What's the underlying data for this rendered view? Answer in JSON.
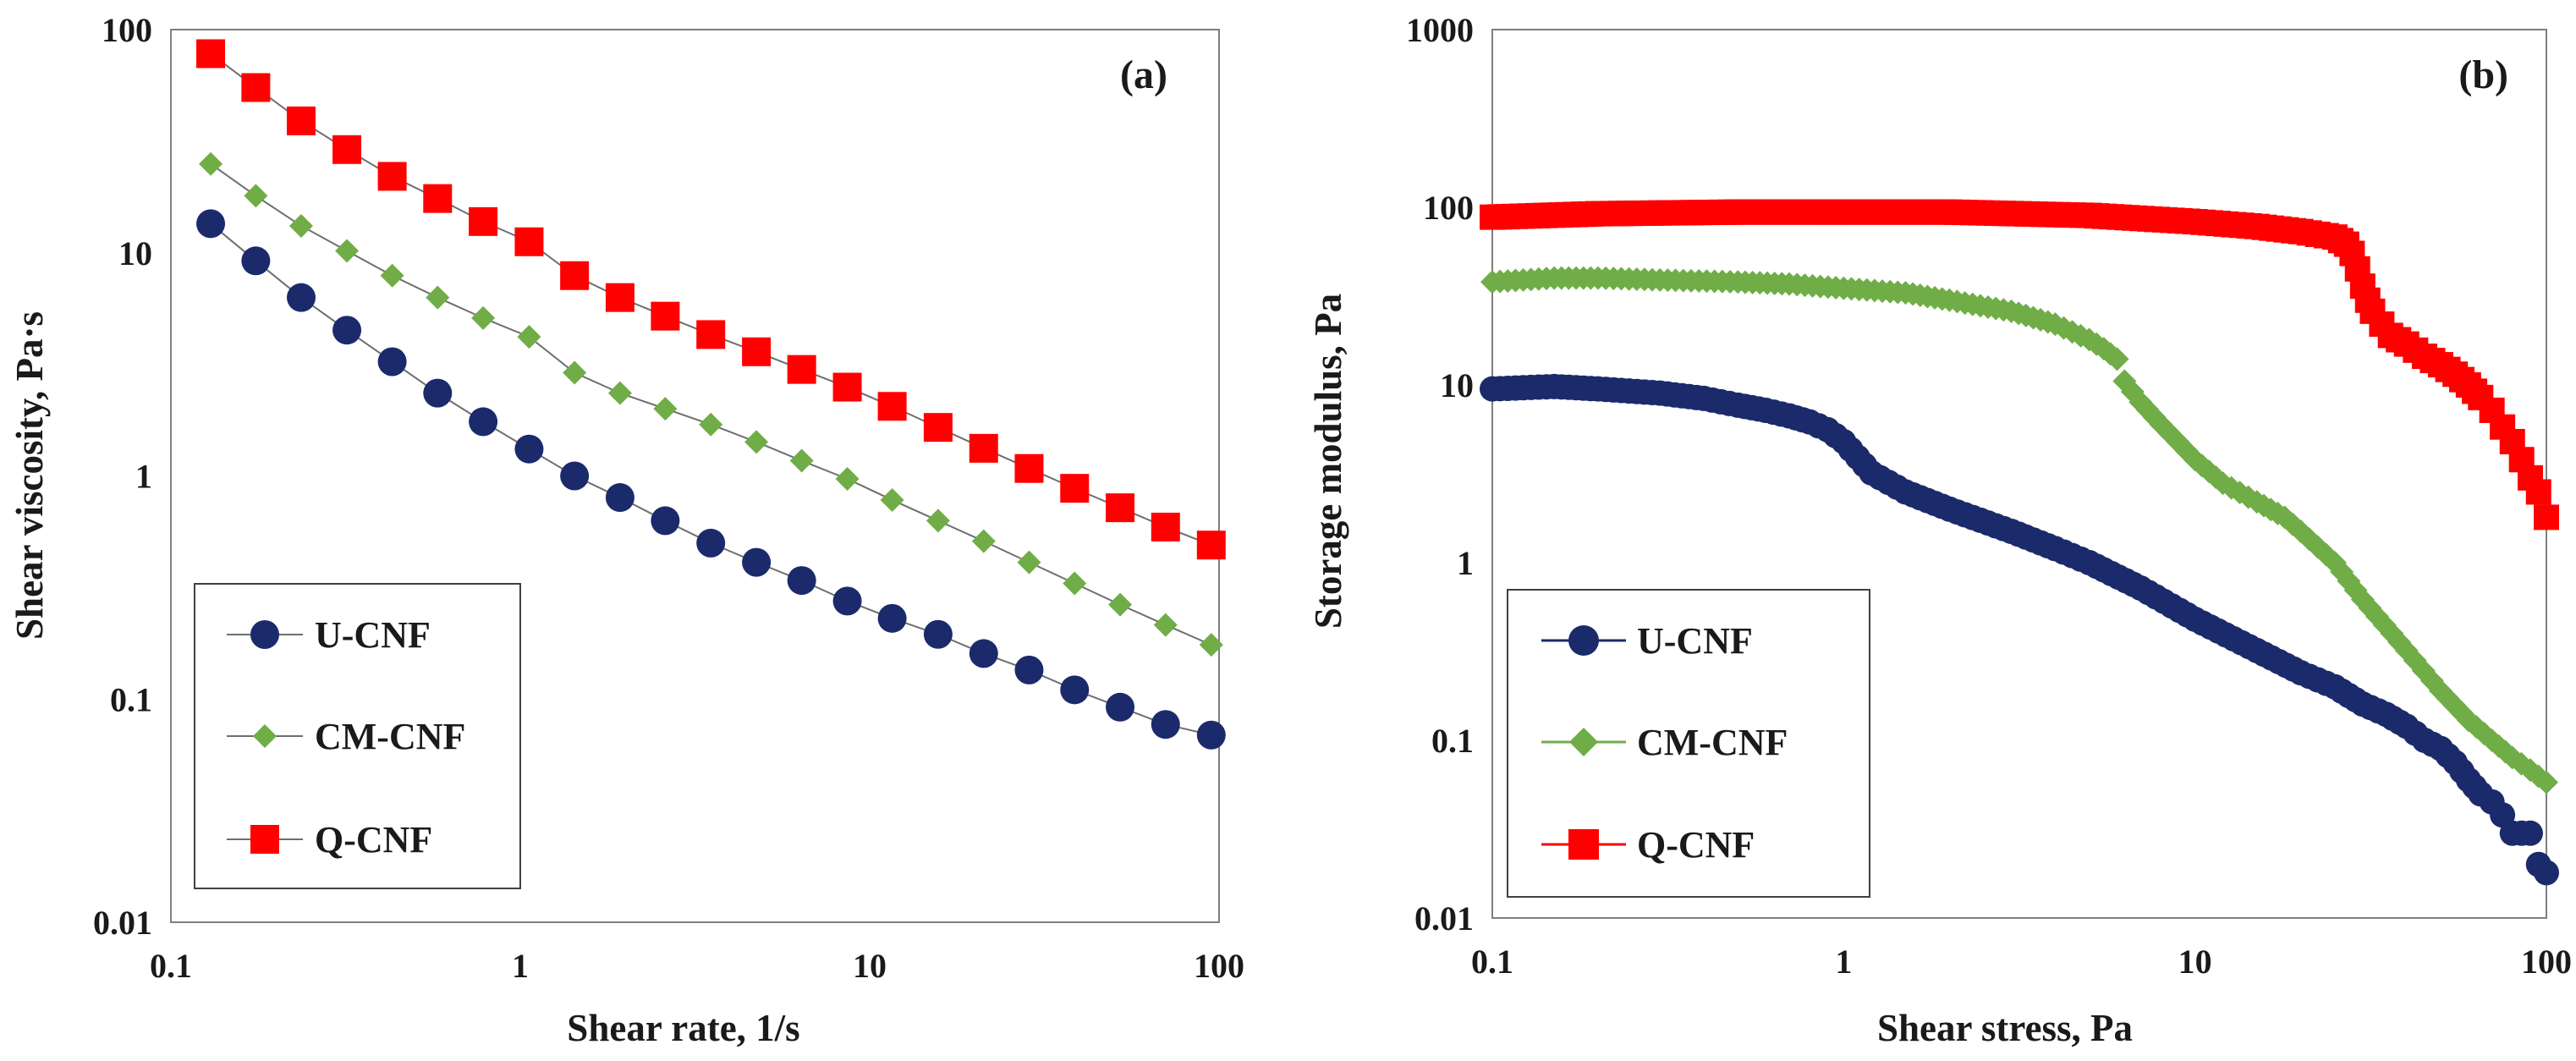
{
  "colors": {
    "U-CNF": "#1b2a6b",
    "CM-CNF": "#70ad47",
    "Q-CNF": "#ff0000",
    "line": "#6e6e6e",
    "axis": "#7f7f7f"
  },
  "chart_data": [
    {
      "type": "line",
      "panel_label": "(a)",
      "xscale": "log",
      "yscale": "log",
      "xlabel": "Shear rate, 1/s",
      "ylabel": "Shear viscosity, Pa·s",
      "xlim": [
        0.1,
        100
      ],
      "ylim": [
        0.01,
        100
      ],
      "xticks": [
        "0.1",
        "1",
        "10",
        "100"
      ],
      "yticks": [
        "0.01",
        "0.1",
        "1",
        "10",
        "100"
      ],
      "legend_position": "bottom-left",
      "x": [
        0.13,
        0.175,
        0.236,
        0.319,
        0.43,
        0.58,
        0.783,
        1.06,
        1.43,
        1.93,
        2.6,
        3.51,
        4.74,
        6.39,
        8.63,
        11.6,
        15.7,
        21.2,
        28.6,
        38.6,
        52.1,
        70.3,
        95.0
      ],
      "series": [
        {
          "name": "U-CNF",
          "marker": "circle",
          "values": [
            13.5,
            9.2,
            6.3,
            4.5,
            3.25,
            2.35,
            1.75,
            1.32,
            1.0,
            0.8,
            0.63,
            0.5,
            0.41,
            0.34,
            0.275,
            0.23,
            0.195,
            0.16,
            0.135,
            0.11,
            0.092,
            0.077,
            0.069
          ]
        },
        {
          "name": "CM-CNF",
          "marker": "diamond",
          "values": [
            25,
            18,
            13.2,
            10.2,
            7.9,
            6.3,
            5.1,
            4.2,
            2.9,
            2.35,
            2.0,
            1.7,
            1.42,
            1.17,
            0.97,
            0.78,
            0.63,
            0.51,
            0.41,
            0.33,
            0.265,
            0.215,
            0.175
          ]
        },
        {
          "name": "Q-CNF",
          "marker": "square",
          "values": [
            78,
            55,
            39,
            29,
            22,
            17.5,
            13.8,
            11.2,
            7.9,
            6.3,
            5.2,
            4.3,
            3.6,
            3.0,
            2.5,
            2.05,
            1.65,
            1.33,
            1.08,
            0.88,
            0.72,
            0.59,
            0.49
          ]
        }
      ]
    },
    {
      "type": "scatter",
      "panel_label": "(b)",
      "xscale": "log",
      "yscale": "log",
      "xlabel": "Shear stress, Pa",
      "ylabel": "Storage modulus, Pa",
      "xlim": [
        0.1,
        100
      ],
      "ylim": [
        0.01,
        1000
      ],
      "xticks": [
        "0.1",
        "1",
        "10",
        "100"
      ],
      "yticks": [
        "0.01",
        "0.1",
        "1",
        "10",
        "100",
        "1000"
      ],
      "legend_position": "bottom-left",
      "series": [
        {
          "name": "U-CNF",
          "marker": "circle",
          "x": [
            0.1,
            0.15,
            0.2,
            0.3,
            0.4,
            0.5,
            0.6,
            0.7,
            0.8,
            0.9,
            1.0,
            1.2,
            1.5,
            2.0,
            3.0,
            4.0,
            5.0,
            7.0,
            10,
            15,
            20,
            25,
            30,
            35,
            40,
            45,
            50,
            55,
            60,
            65,
            70,
            75,
            80,
            85,
            90,
            95,
            100
          ],
          "y": [
            9.5,
            9.8,
            9.5,
            9.0,
            8.4,
            7.7,
            7.2,
            6.7,
            6.2,
            5.6,
            4.8,
            3.2,
            2.5,
            2.0,
            1.5,
            1.2,
            1.0,
            0.72,
            0.48,
            0.32,
            0.24,
            0.2,
            0.16,
            0.14,
            0.12,
            0.1,
            0.09,
            0.075,
            0.06,
            0.05,
            0.045,
            0.038,
            0.03,
            0.03,
            0.03,
            0.02,
            0.018
          ]
        },
        {
          "name": "CM-CNF",
          "marker": "diamond",
          "x": [
            0.1,
            0.15,
            0.2,
            0.3,
            0.5,
            0.7,
            1.0,
            1.5,
            2.0,
            3.0,
            4.0,
            5.0,
            5.5,
            6.0,
            6.3,
            7.0,
            8.0,
            10,
            12,
            15,
            18,
            20,
            25,
            30,
            40,
            50,
            60,
            70,
            80,
            90,
            100
          ],
          "y": [
            38,
            40,
            40,
            39,
            38,
            37,
            35,
            33,
            30,
            26,
            22,
            18,
            16,
            14,
            10.5,
            8.0,
            6.0,
            3.8,
            2.8,
            2.2,
            1.8,
            1.5,
            1.0,
            0.62,
            0.32,
            0.19,
            0.13,
            0.1,
            0.08,
            0.068,
            0.058
          ]
        },
        {
          "name": "Q-CNF",
          "marker": "square",
          "x": [
            0.1,
            0.2,
            0.5,
            1.0,
            2.0,
            5.0,
            10,
            15,
            20,
            25,
            27,
            28,
            29,
            30,
            31,
            32,
            34,
            36,
            40,
            45,
            50,
            55,
            60,
            65,
            70,
            75,
            80,
            85,
            90,
            95,
            100
          ],
          "y": [
            88,
            92,
            94,
            94,
            94,
            90,
            83,
            78,
            73,
            68,
            62,
            55,
            45,
            36,
            30,
            26,
            22,
            19,
            17,
            14.5,
            13,
            11.5,
            10.0,
            8.5,
            7.2,
            5.8,
            4.8,
            3.8,
            3.0,
            2.5,
            1.8
          ]
        }
      ]
    }
  ]
}
